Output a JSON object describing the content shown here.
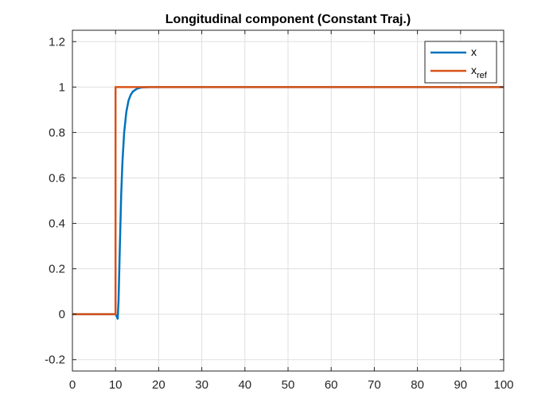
{
  "chart_data": {
    "type": "line",
    "title": "Longitudinal component (Constant Traj.)",
    "xlabel": "",
    "ylabel": "",
    "xlim": [
      0,
      100
    ],
    "ylim": [
      -0.25,
      1.25
    ],
    "x_ticks": [
      0,
      10,
      20,
      30,
      40,
      50,
      60,
      70,
      80,
      90,
      100
    ],
    "x_tick_labels": [
      "0",
      "10",
      "20",
      "30",
      "40",
      "50",
      "60",
      "70",
      "80",
      "90",
      "100"
    ],
    "y_ticks": [
      -0.2,
      0,
      0.2,
      0.4,
      0.6,
      0.8,
      1,
      1.2
    ],
    "y_tick_labels": [
      "-0.2",
      "0",
      "0.2",
      "0.4",
      "0.6",
      "0.8",
      "1",
      "1.2"
    ],
    "grid": true,
    "legend": {
      "position": "top-right",
      "entries": [
        {
          "label": "x",
          "subscript": ""
        },
        {
          "label": "x",
          "subscript": "ref"
        }
      ]
    },
    "series": [
      {
        "name": "x",
        "color": "#0072BD",
        "x": [
          0,
          10,
          10.3,
          10.5,
          10.7,
          11,
          11.3,
          11.6,
          12,
          12.5,
          13,
          13.5,
          14,
          15,
          16,
          17,
          18,
          20,
          100
        ],
        "y": [
          0,
          0,
          -0.01,
          -0.02,
          0.06,
          0.3,
          0.52,
          0.67,
          0.8,
          0.89,
          0.94,
          0.965,
          0.98,
          0.993,
          0.998,
          0.999,
          1,
          1,
          1
        ]
      },
      {
        "name": "x_ref",
        "color": "#D95319",
        "x": [
          0,
          10,
          10,
          100
        ],
        "y": [
          0,
          0,
          1,
          1
        ]
      }
    ]
  }
}
